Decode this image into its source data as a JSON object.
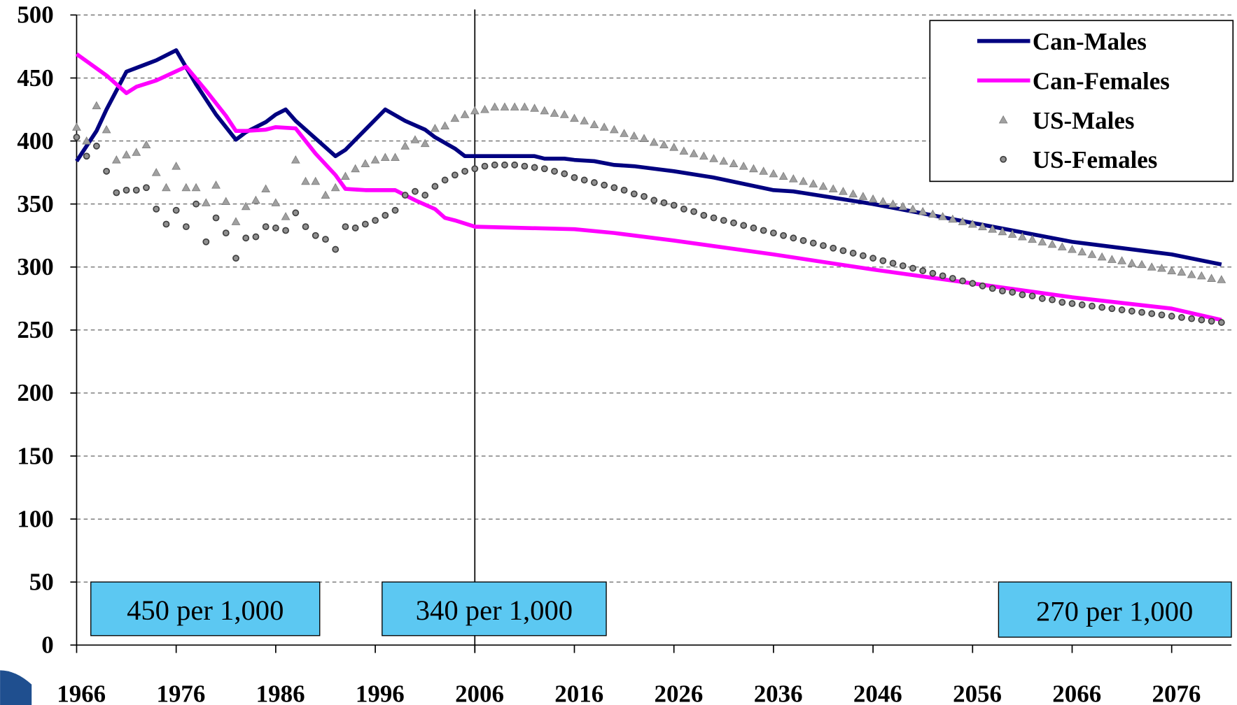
{
  "chart_data": {
    "type": "line",
    "xlim": [
      1966,
      2082
    ],
    "ylim": [
      0,
      500
    ],
    "xticks": [
      1966,
      1976,
      1986,
      1996,
      2006,
      2016,
      2026,
      2036,
      2046,
      2056,
      2066,
      2076
    ],
    "yticks": [
      0,
      50,
      100,
      150,
      200,
      250,
      300,
      350,
      400,
      450,
      500
    ],
    "grid": true,
    "legend": "upper right",
    "vline": 2006,
    "annotations": [
      "450 per 1,000",
      "340 per 1,000",
      "270 per 1,000"
    ],
    "series": [
      {
        "name": "Can-Males",
        "color": "#000080",
        "style": "line",
        "x": [
          1966,
          1968,
          1969,
          1971,
          1973,
          1974,
          1976,
          1978,
          1980,
          1982,
          1983,
          1985,
          1986,
          1987,
          1988,
          1990,
          1992,
          1993,
          1995,
          1997,
          1999,
          2001,
          2002,
          2004,
          2005,
          2012,
          2013,
          2015,
          2016,
          2018,
          2020,
          2022,
          2024,
          2026,
          2030,
          2036,
          2038,
          2046,
          2056,
          2066,
          2068,
          2076,
          2081
        ],
        "values": [
          384,
          408,
          425,
          455,
          461,
          464,
          472,
          445,
          421,
          401,
          407,
          415,
          421,
          425,
          416,
          402,
          388,
          393,
          409,
          425,
          416,
          409,
          403,
          394,
          388,
          388,
          386,
          386,
          385,
          384,
          381,
          380,
          378,
          376,
          371,
          361,
          360,
          350,
          335,
          320,
          318,
          310,
          302
        ]
      },
      {
        "name": "Can-Females",
        "color": "#ff00ff",
        "style": "line",
        "x": [
          1966,
          1969,
          1971,
          1972,
          1974,
          1977,
          1979,
          1981,
          1982,
          1983,
          1985,
          1986,
          1988,
          1990,
          1992,
          1993,
          1995,
          1998,
          2000,
          2002,
          2003,
          2004,
          2006,
          2016,
          2020,
          2026,
          2036,
          2046,
          2056,
          2066,
          2076,
          2081
        ],
        "values": [
          469,
          452,
          438,
          443,
          448,
          459,
          440,
          420,
          408,
          408,
          409,
          411,
          410,
          390,
          373,
          362,
          361,
          361,
          353,
          346,
          339,
          337,
          332,
          330,
          327,
          321,
          310,
          298,
          287,
          276,
          267,
          258
        ]
      },
      {
        "name": "US-Males",
        "color": "#a0a0a0",
        "style": "triangle",
        "x": [
          1966,
          1967,
          1968,
          1969,
          1970,
          1971,
          1972,
          1973,
          1974,
          1975,
          1976,
          1977,
          1978,
          1979,
          1980,
          1981,
          1982,
          1983,
          1984,
          1985,
          1986,
          1987,
          1988,
          1989,
          1990,
          1991,
          1992,
          1993,
          1994,
          1995,
          1996,
          1997,
          1998,
          1999,
          2000,
          2001,
          2002,
          2003,
          2004,
          2005,
          2006,
          2007,
          2008,
          2009,
          2010,
          2011,
          2012,
          2013,
          2014,
          2015,
          2016,
          2017,
          2018,
          2019,
          2020,
          2021,
          2022,
          2023,
          2024,
          2025,
          2026,
          2027,
          2028,
          2029,
          2030,
          2031,
          2032,
          2033,
          2034,
          2035,
          2036,
          2037,
          2038,
          2039,
          2040,
          2041,
          2042,
          2043,
          2044,
          2045,
          2046,
          2047,
          2048,
          2049,
          2050,
          2051,
          2052,
          2053,
          2054,
          2055,
          2056,
          2057,
          2058,
          2059,
          2060,
          2061,
          2062,
          2063,
          2064,
          2065,
          2066,
          2067,
          2068,
          2069,
          2070,
          2071,
          2072,
          2073,
          2074,
          2075,
          2076,
          2077,
          2078,
          2079,
          2080,
          2081
        ],
        "values": [
          411,
          400,
          428,
          409,
          385,
          389,
          391,
          397,
          375,
          363,
          380,
          363,
          363,
          351,
          365,
          352,
          336,
          348,
          353,
          362,
          351,
          340,
          385,
          368,
          368,
          357,
          363,
          372,
          378,
          382,
          385,
          387,
          387,
          396,
          401,
          398,
          410,
          412,
          418,
          421,
          424,
          425,
          427,
          427,
          427,
          427,
          426,
          424,
          422,
          421,
          418,
          416,
          413,
          411,
          409,
          406,
          404,
          402,
          399,
          397,
          395,
          392,
          390,
          388,
          386,
          384,
          382,
          380,
          378,
          376,
          374,
          372,
          370,
          368,
          366,
          364,
          362,
          360,
          358,
          356,
          354,
          352,
          350,
          348,
          346,
          344,
          342,
          340,
          338,
          336,
          334,
          332,
          330,
          328,
          326,
          324,
          322,
          320,
          318,
          316,
          314,
          312,
          310,
          308,
          306,
          305,
          303,
          302,
          300,
          299,
          297,
          296,
          294,
          293,
          291,
          290
        ]
      },
      {
        "name": "US-Females",
        "color": "#404040",
        "style": "circle",
        "x": [
          1966,
          1967,
          1968,
          1969,
          1970,
          1971,
          1972,
          1973,
          1974,
          1975,
          1976,
          1977,
          1978,
          1979,
          1980,
          1981,
          1982,
          1983,
          1984,
          1985,
          1986,
          1987,
          1988,
          1989,
          1990,
          1991,
          1992,
          1993,
          1994,
          1995,
          1996,
          1997,
          1998,
          1999,
          2000,
          2001,
          2002,
          2003,
          2004,
          2005,
          2006,
          2007,
          2008,
          2009,
          2010,
          2011,
          2012,
          2013,
          2014,
          2015,
          2016,
          2017,
          2018,
          2019,
          2020,
          2021,
          2022,
          2023,
          2024,
          2025,
          2026,
          2027,
          2028,
          2029,
          2030,
          2031,
          2032,
          2033,
          2034,
          2035,
          2036,
          2037,
          2038,
          2039,
          2040,
          2041,
          2042,
          2043,
          2044,
          2045,
          2046,
          2047,
          2048,
          2049,
          2050,
          2051,
          2052,
          2053,
          2054,
          2055,
          2056,
          2057,
          2058,
          2059,
          2060,
          2061,
          2062,
          2063,
          2064,
          2065,
          2066,
          2067,
          2068,
          2069,
          2070,
          2071,
          2072,
          2073,
          2074,
          2075,
          2076,
          2077,
          2078,
          2079,
          2080,
          2081
        ],
        "values": [
          403,
          388,
          396,
          376,
          359,
          361,
          361,
          363,
          346,
          334,
          345,
          332,
          350,
          320,
          339,
          327,
          307,
          323,
          324,
          332,
          331,
          329,
          343,
          332,
          325,
          322,
          314,
          332,
          331,
          334,
          337,
          341,
          345,
          357,
          360,
          357,
          364,
          369,
          373,
          376,
          378,
          380,
          381,
          381,
          381,
          380,
          379,
          378,
          376,
          374,
          371,
          369,
          367,
          365,
          363,
          361,
          358,
          356,
          353,
          351,
          349,
          346,
          344,
          341,
          339,
          337,
          335,
          333,
          331,
          329,
          327,
          325,
          323,
          321,
          319,
          317,
          315,
          313,
          311,
          309,
          307,
          305,
          303,
          301,
          299,
          297,
          295,
          293,
          291,
          289,
          287,
          285,
          283,
          281,
          280,
          278,
          277,
          275,
          274,
          272,
          271,
          270,
          269,
          268,
          267,
          266,
          265,
          264,
          263,
          262,
          261,
          260,
          259,
          258,
          257,
          256
        ]
      }
    ]
  }
}
